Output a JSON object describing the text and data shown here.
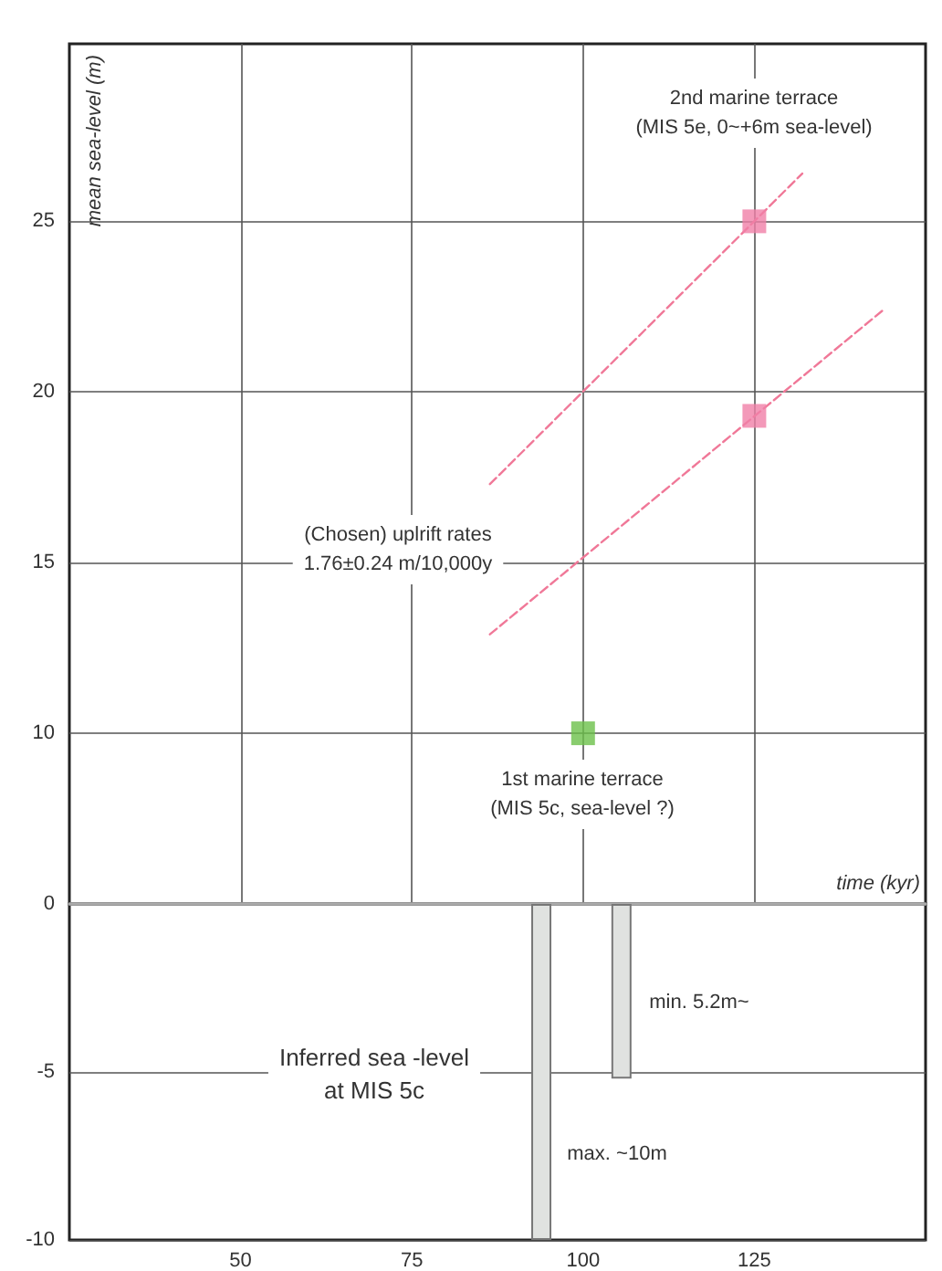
{
  "chart_data": [
    {
      "type": "scatter",
      "ylabel": "mean sea-level (m)",
      "xlim": [
        25,
        150
      ],
      "xticks": [
        {
          "value": 50,
          "label": null
        },
        {
          "value": 75,
          "label": null
        },
        {
          "value": 100,
          "label": null
        },
        {
          "value": 125,
          "label": null
        }
      ],
      "ylim": [
        5,
        30.2
      ],
      "yticks": [
        10,
        15,
        20,
        25
      ],
      "tick_labels": "y",
      "grid": true,
      "marker": "square",
      "annotations": [
        "2nd marine terrace\n(MIS 5e, 0~+6m sea-level)",
        "(Chosen) uplrift rates\n1.76±0.24 m/10,000y",
        "1st marine terrace\n(MIS 5c, sea-level ?)"
      ],
      "series": [
        {
          "type": "scatter",
          "x": [
            125,
            125,
            100
          ],
          "values": [
            25,
            19.3,
            10
          ],
          "colors": [
            "#f080a8",
            "#f080a8",
            "#6cc04a"
          ]
        },
        {
          "type": "line",
          "x": [
            86.4,
            132
          ],
          "values": [
            17.3,
            26.4
          ],
          "color": "#f07898",
          "line_style": "dashed",
          "marker": "none"
        },
        {
          "type": "line",
          "x": [
            86.4,
            143.8
          ],
          "values": [
            12.9,
            22.4
          ],
          "color": "#f07898",
          "line_style": "dashed",
          "marker": "none"
        }
      ]
    },
    {
      "type": "bar",
      "xlabel": "time (kyr)",
      "xlim": [
        25,
        150
      ],
      "xticks": [
        50,
        75,
        100,
        125
      ],
      "ylim": [
        -10,
        0
      ],
      "yticks": [
        -10,
        -5,
        0
      ],
      "grid": "y",
      "x": [
        93.9,
        105.6
      ],
      "values": [
        -10,
        -5.2
      ],
      "color": "#e0e2e0",
      "annotations": [
        "min. 5.2m~",
        "max. ~10m",
        "Inferred sea -level\nat MIS 5c"
      ]
    }
  ]
}
